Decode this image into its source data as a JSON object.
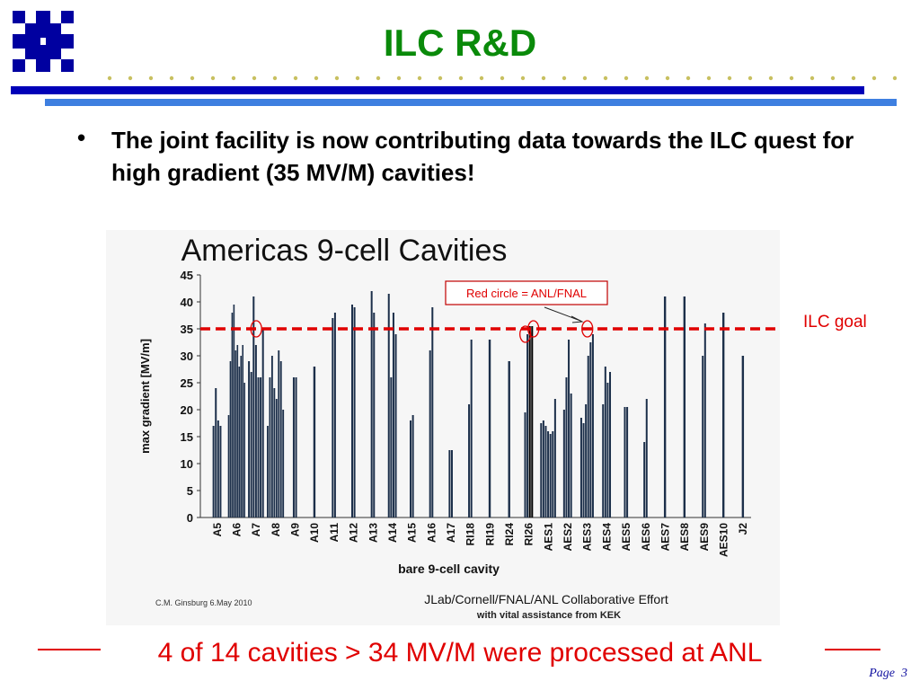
{
  "header": {
    "title": "ILC R&D",
    "logo_icon": "fermilab-logo-icon",
    "accent_colors": {
      "title": "#0a8a0a",
      "bar_dark": "#0000b8",
      "bar_light": "#3e7fe0",
      "red": "#e00000"
    }
  },
  "bullet": {
    "text": "The joint facility is now contributing data towards the ILC quest for high gradient (35 MV/M) cavities!"
  },
  "annotations": {
    "ilc_goal": "ILC goal",
    "bottom_note": "4 of 14 cavities > 34 MV/M were processed at ANL",
    "page_label": "Page",
    "page_number": "3"
  },
  "chart_data": {
    "type": "bar",
    "title": "Americas 9-cell Cavities",
    "xlabel": "bare 9-cell cavity",
    "ylabel": "max gradient [MV/m]",
    "ylim": [
      0,
      45
    ],
    "yticks": [
      0,
      5,
      10,
      15,
      20,
      25,
      30,
      35,
      40,
      45
    ],
    "categories": [
      "A5",
      "A6",
      "A7",
      "A8",
      "A9",
      "A10",
      "A11",
      "A12",
      "A13",
      "A14",
      "A15",
      "A16",
      "A17",
      "RI18",
      "RI19",
      "RI24",
      "RI26",
      "AES1",
      "AES2",
      "AES3",
      "AES4",
      "AES5",
      "AES6",
      "AES7",
      "AES8",
      "AES9",
      "AES10",
      "J2"
    ],
    "groups": [
      [
        17,
        24,
        18,
        17
      ],
      [
        19,
        29,
        38,
        39.5,
        31,
        32,
        28,
        30,
        32,
        25
      ],
      [
        29,
        27,
        41,
        32,
        26,
        26,
        35
      ],
      [
        17,
        26,
        30,
        24,
        22,
        31,
        29,
        20
      ],
      [
        26,
        26
      ],
      [
        28
      ],
      [
        37,
        38
      ],
      [
        39.5,
        39
      ],
      [
        42,
        38
      ],
      [
        41.5,
        26,
        38,
        34
      ],
      [
        18,
        19
      ],
      [
        31,
        39
      ],
      [
        12.5,
        12.5
      ],
      [
        21,
        33
      ],
      [
        33
      ],
      [
        29
      ],
      [
        19.5,
        34,
        35.5,
        35.5
      ],
      [
        17.5,
        18,
        17,
        16,
        15.5,
        16,
        22
      ],
      [
        20,
        26,
        33,
        23
      ],
      [
        18.5,
        17.5,
        21,
        30,
        32.5,
        34
      ],
      [
        21,
        28,
        25,
        27
      ],
      [
        20.5,
        20.5
      ],
      [
        14,
        22
      ],
      [
        41
      ],
      [
        41
      ],
      [
        30,
        36
      ],
      [
        38
      ],
      [
        30
      ]
    ],
    "anl_fnal_circled": [
      "A7",
      "RI26",
      "RI26",
      "AES3"
    ],
    "ilc_goal_value": 35,
    "legend": "Red circle = ANL/FNAL",
    "credit": "C.M. Ginsburg  6.May 2010",
    "footer_main": "JLab/Cornell/FNAL/ANL Collaborative Effort",
    "footer_sub": "with vital assistance from KEK",
    "grid": false
  }
}
